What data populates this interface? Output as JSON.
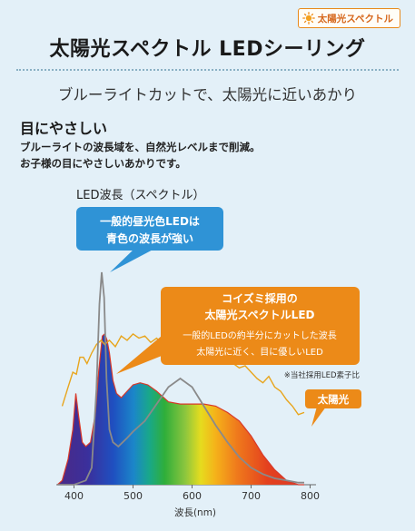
{
  "badge": {
    "label": "太陽光スペクトル",
    "icon": "sun-icon"
  },
  "header": {
    "title": "太陽光スペクトル LEDシーリング",
    "subtitle": "ブルーライトカットで、太陽光に近いあかり"
  },
  "section": {
    "heading": "目にやさしい",
    "lines": [
      "ブルーライトの波長域を、自然光レベルまで削減。",
      "お子様の目にやさしいあかりです。"
    ]
  },
  "chart_data": {
    "type": "area",
    "title": "LED波長（スペクトル）",
    "xlabel": "波長(nm)",
    "ylabel": "",
    "xlim": [
      370,
      810
    ],
    "ylim": [
      0,
      1
    ],
    "x_ticks": [
      400,
      500,
      600,
      700,
      800
    ],
    "grid": false,
    "series": [
      {
        "name": "コイズミ採用の太陽光スペクトルLED",
        "style": "filled-rainbow",
        "x": [
          372,
          380,
          390,
          398,
          403,
          408,
          414,
          420,
          428,
          436,
          442,
          448,
          452,
          456,
          460,
          466,
          472,
          480,
          490,
          500,
          512,
          525,
          540,
          560,
          580,
          600,
          620,
          640,
          660,
          680,
          700,
          720,
          740,
          760,
          780,
          790
        ],
        "y": [
          0.0,
          0.02,
          0.12,
          0.26,
          0.43,
          0.32,
          0.2,
          0.18,
          0.2,
          0.33,
          0.54,
          0.7,
          0.71,
          0.68,
          0.62,
          0.49,
          0.43,
          0.41,
          0.44,
          0.47,
          0.48,
          0.47,
          0.44,
          0.39,
          0.38,
          0.38,
          0.38,
          0.37,
          0.34,
          0.3,
          0.23,
          0.14,
          0.07,
          0.02,
          0.0,
          0.0
        ]
      },
      {
        "name": "一般的昼光色LED",
        "style": "line",
        "x": [
          372,
          390,
          400,
          410,
          420,
          430,
          438,
          443,
          447,
          451,
          455,
          460,
          466,
          475,
          490,
          500,
          520,
          540,
          560,
          580,
          600,
          620,
          640,
          660,
          680,
          700,
          720,
          740,
          760,
          780,
          790
        ],
        "y": [
          0.0,
          0.0,
          0.0,
          0.01,
          0.02,
          0.08,
          0.45,
          0.85,
          1.0,
          0.88,
          0.5,
          0.26,
          0.2,
          0.18,
          0.22,
          0.25,
          0.3,
          0.38,
          0.46,
          0.5,
          0.46,
          0.37,
          0.28,
          0.2,
          0.13,
          0.08,
          0.05,
          0.03,
          0.02,
          0.01,
          0.01
        ]
      },
      {
        "name": "太陽光",
        "style": "line",
        "x": [
          380,
          390,
          398,
          404,
          410,
          416,
          422,
          430,
          438,
          446,
          452,
          460,
          470,
          480,
          490,
          500,
          510,
          520,
          530,
          540,
          550,
          560,
          570,
          580,
          590,
          600,
          610,
          620,
          630,
          640,
          650,
          660,
          670,
          680,
          690,
          700,
          710,
          720,
          730,
          740,
          750,
          760,
          770,
          780,
          790
        ],
        "y": [
          0.37,
          0.46,
          0.53,
          0.52,
          0.6,
          0.6,
          0.57,
          0.62,
          0.66,
          0.68,
          0.66,
          0.68,
          0.65,
          0.7,
          0.68,
          0.71,
          0.69,
          0.7,
          0.67,
          0.69,
          0.66,
          0.68,
          0.66,
          0.67,
          0.63,
          0.66,
          0.64,
          0.63,
          0.61,
          0.62,
          0.58,
          0.6,
          0.57,
          0.55,
          0.56,
          0.53,
          0.5,
          0.48,
          0.51,
          0.46,
          0.44,
          0.4,
          0.37,
          0.33,
          0.34
        ]
      }
    ],
    "annotations": {
      "blue_callout": {
        "lines": [
          "一般的昼光色LEDは",
          "青色の波長が強い"
        ],
        "color": "#2f93d6"
      },
      "orange_callout": {
        "heading": [
          "コイズミ採用の",
          "太陽光スペクトルLED"
        ],
        "body": [
          "一般的LEDの約半分にカットした波長",
          "太陽光に近く、目に優しいLED"
        ],
        "color": "#ec8a18"
      },
      "footnote": "※当社採用LED素子比",
      "sun_tag": {
        "label": "太陽光",
        "color": "#ec8a18"
      }
    },
    "colors": {
      "led_line": "#8a8a8a",
      "sun_line": "#e8a51c",
      "led_outline": "#d8392a"
    }
  }
}
